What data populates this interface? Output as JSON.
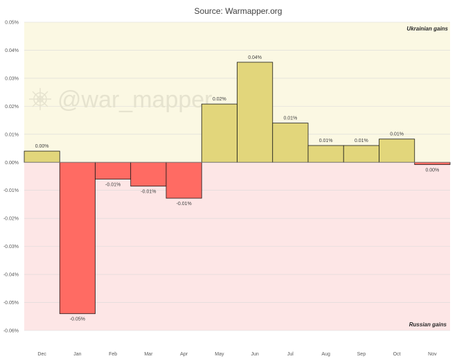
{
  "chart_data": {
    "type": "bar",
    "title": "Source: Warmapper.org",
    "xlabel": "",
    "ylabel": "",
    "categories": [
      "Dec",
      "Jan",
      "Feb",
      "Mar",
      "Apr",
      "May",
      "Jun",
      "Jul",
      "Aug",
      "Sep",
      "Oct",
      "Nov"
    ],
    "values": [
      0.004,
      -0.054,
      -0.006,
      -0.0085,
      -0.0128,
      0.0208,
      0.0357,
      0.014,
      0.006,
      0.006,
      0.0083,
      -0.0008
    ],
    "data_labels": [
      "0.00%",
      "-0.05%",
      "-0.01%",
      "-0.01%",
      "-0.01%",
      "0.02%",
      "0.04%",
      "0.01%",
      "0.01%",
      "0.01%",
      "0.01%",
      "0.00%"
    ],
    "ylim": [
      -0.06,
      0.05
    ],
    "yticks": [
      0.05,
      0.04,
      0.03,
      0.02,
      0.01,
      0.0,
      -0.01,
      -0.02,
      -0.03,
      -0.04,
      -0.05,
      -0.06
    ],
    "ytick_labels": [
      "0.05%",
      "0.04%",
      "0.03%",
      "0.02%",
      "0.01%",
      "0.00%",
      "-0.01%",
      "-0.02%",
      "-0.03%",
      "-0.04%",
      "-0.05%",
      "-0.06%"
    ],
    "grid": true,
    "positive_zone_label": "Ukrainian gains",
    "negative_zone_label": "Russian gains",
    "watermark": "@war_mapper"
  },
  "colors": {
    "positive_bar": "#e2d67b",
    "negative_bar": "#ff6b63",
    "positive_zone": "#fbf8e3",
    "negative_zone": "#fde6e6",
    "gridline": "#d9d9d9"
  }
}
